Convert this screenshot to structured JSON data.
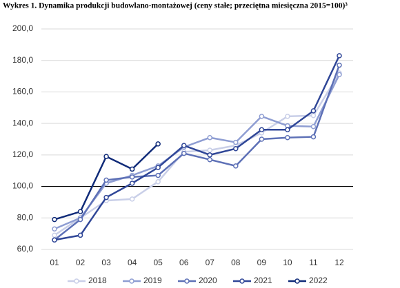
{
  "chart_data": {
    "type": "line",
    "title": "Wykres 1. Dynamika produkcji budowlano-montażowej (ceny stałe; przeciętna miesięczna 2015=100)³",
    "categories": [
      "01",
      "02",
      "03",
      "04",
      "05",
      "06",
      "07",
      "08",
      "09",
      "10",
      "11",
      "12"
    ],
    "series": [
      {
        "name": "2018",
        "color": "#c9cfe8",
        "values": [
          69,
          80,
          91,
          92,
          103,
          122,
          123,
          126,
          134,
          144.5,
          145,
          172
        ]
      },
      {
        "name": "2019",
        "color": "#8e9dd2",
        "values": [
          73,
          80,
          102,
          107,
          113,
          125,
          131,
          128,
          144.5,
          138.5,
          138,
          171
        ]
      },
      {
        "name": "2020",
        "color": "#5d70b6",
        "values": [
          66,
          79,
          104,
          106,
          107,
          121,
          117,
          113,
          130,
          131,
          131.5,
          177
        ]
      },
      {
        "name": "2021",
        "color": "#2f4697",
        "values": [
          66,
          69,
          93,
          102,
          112,
          126,
          120,
          124,
          136,
          136,
          148,
          183
        ]
      },
      {
        "name": "2022",
        "color": "#0f2a78",
        "values": [
          79,
          84,
          119,
          111,
          127,
          null,
          null,
          null,
          null,
          null,
          null,
          null
        ]
      }
    ],
    "ylim": [
      60,
      200
    ],
    "yticks": [
      {
        "value": 60,
        "label": "60,0"
      },
      {
        "value": 80,
        "label": "80,0"
      },
      {
        "value": 100,
        "label": "100,0"
      },
      {
        "value": 120,
        "label": "120,0"
      },
      {
        "value": 140,
        "label": "140,0"
      },
      {
        "value": 160,
        "label": "160,0"
      },
      {
        "value": 180,
        "label": "180,0"
      },
      {
        "value": 200,
        "label": "200,0"
      }
    ],
    "reference_line": 100,
    "grid": true,
    "legend": "bottom"
  }
}
